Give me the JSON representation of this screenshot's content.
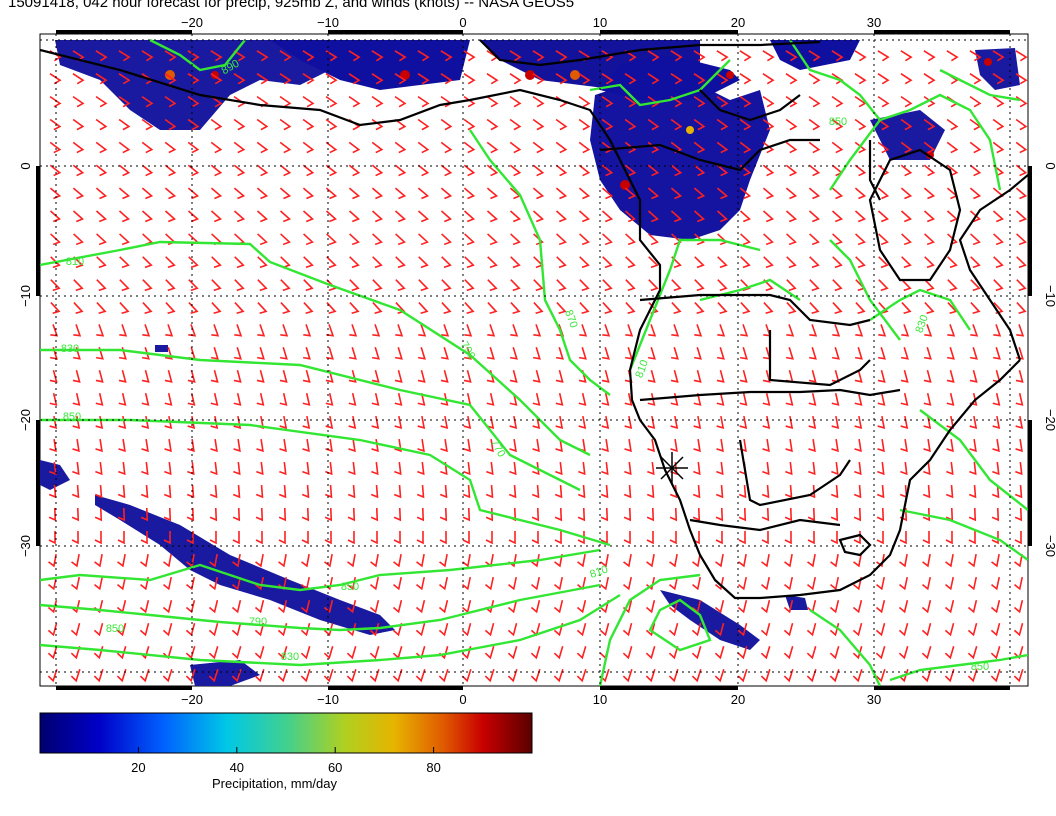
{
  "title": "15091418, 042 hour forecast for precip, 925mb Z, and winds (knots) -- NASA GEOS5",
  "axes": {
    "lon_ticks": [
      "−20",
      "−10",
      "0",
      "10",
      "20",
      "30"
    ],
    "lat_ticks": [
      "0",
      "−10",
      "−20",
      "−30"
    ]
  },
  "contour_labels": [
    "810",
    "830",
    "850",
    "790",
    "770",
    "870",
    "890",
    "850",
    "830",
    "810",
    "850",
    "790",
    "810",
    "830",
    "850",
    "850"
  ],
  "colorbar": {
    "title": "Precipitation, mm/day",
    "ticks": [
      "20",
      "40",
      "60",
      "80"
    ],
    "min": 0,
    "max": 100
  },
  "colors": {
    "coast": "#000000",
    "contour": "#33e633",
    "wind_barb": "#ff2020",
    "precip_base": "#1a1aa0"
  }
}
